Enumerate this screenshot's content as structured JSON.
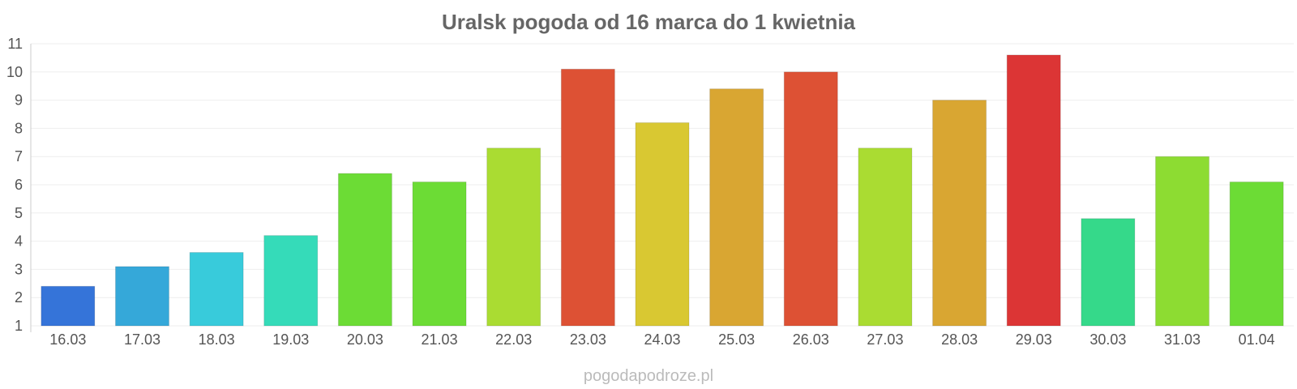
{
  "chart_data": {
    "type": "bar",
    "title": "Uralsk pogoda od 16 marca do 1 kwietnia",
    "categories": [
      "16.03",
      "17.03",
      "18.03",
      "19.03",
      "20.03",
      "21.03",
      "22.03",
      "23.03",
      "24.03",
      "25.03",
      "26.03",
      "27.03",
      "28.03",
      "29.03",
      "30.03",
      "31.03",
      "01.04"
    ],
    "values": [
      2.4,
      3.1,
      3.6,
      4.2,
      6.4,
      6.1,
      7.3,
      10.1,
      8.2,
      9.4,
      10.0,
      7.3,
      9.0,
      10.6,
      4.8,
      7.0,
      6.1
    ],
    "colors": [
      "#3574d9",
      "#35a8d9",
      "#38cbdb",
      "#35dbb9",
      "#6cdc35",
      "#6cdc35",
      "#aadc32",
      "#dd5134",
      "#d9c832",
      "#d9a632",
      "#dd5134",
      "#aadc32",
      "#d9a632",
      "#dc3535",
      "#35d98a",
      "#8ddc32",
      "#6cdc35"
    ],
    "ylim": [
      1,
      11
    ],
    "yticks": [
      1,
      2,
      3,
      4,
      5,
      6,
      7,
      8,
      9,
      10,
      11
    ],
    "grid": true,
    "xlabel": "",
    "ylabel": ""
  },
  "watermark": "pogodapodroze.pl"
}
